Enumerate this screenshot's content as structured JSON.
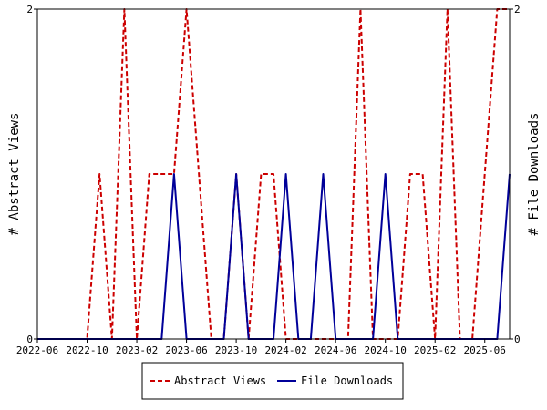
{
  "chart_data": {
    "type": "line",
    "x": [
      "2022-06",
      "2022-07",
      "2022-08",
      "2022-09",
      "2022-10",
      "2022-11",
      "2022-12",
      "2023-01",
      "2023-02",
      "2023-03",
      "2023-04",
      "2023-05",
      "2023-06",
      "2023-07",
      "2023-08",
      "2023-09",
      "2023-10",
      "2023-11",
      "2023-12",
      "2024-01",
      "2024-02",
      "2024-03",
      "2024-04",
      "2024-05",
      "2024-06",
      "2024-07",
      "2024-08",
      "2024-09",
      "2024-10",
      "2024-11",
      "2024-12",
      "2025-01",
      "2025-02",
      "2025-03",
      "2025-04",
      "2025-05",
      "2025-06",
      "2025-07",
      "2025-08"
    ],
    "x_ticks": [
      "2022-06",
      "2022-10",
      "2023-02",
      "2023-06",
      "2023-10",
      "2024-02",
      "2024-06",
      "2024-10",
      "2025-02",
      "2025-06"
    ],
    "series": [
      {
        "name": "Abstract Views",
        "color": "#cc0000",
        "style": "dashed",
        "axis": "left",
        "values": [
          0,
          0,
          0,
          0,
          0,
          1,
          0,
          2,
          0,
          1,
          1,
          1,
          2,
          1,
          0,
          0,
          1,
          0,
          1,
          1,
          0,
          0,
          0,
          0,
          0,
          0,
          2,
          0,
          0,
          0,
          1,
          1,
          0,
          2,
          0,
          0,
          1,
          2,
          2
        ]
      },
      {
        "name": "File Downloads",
        "color": "#000099",
        "style": "solid",
        "axis": "right",
        "values": [
          0,
          0,
          0,
          0,
          0,
          0,
          0,
          0,
          0,
          0,
          0,
          1,
          0,
          0,
          0,
          0,
          1,
          0,
          0,
          0,
          1,
          0,
          0,
          1,
          0,
          0,
          0,
          0,
          1,
          0,
          0,
          0,
          0,
          0,
          0,
          0,
          0,
          0,
          1
        ]
      }
    ],
    "ylabel_left": "# Abstract Views",
    "ylabel_right": "# File Downloads",
    "ylim_left": [
      0,
      2
    ],
    "ylim_right": [
      0,
      2
    ],
    "y_ticks_left": [
      "0",
      "2"
    ],
    "y_ticks_right": [
      "0",
      "2"
    ],
    "grid": false,
    "legend_position": "bottom"
  }
}
